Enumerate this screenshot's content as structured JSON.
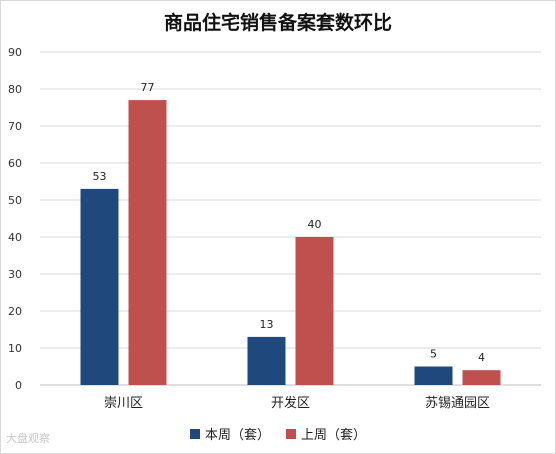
{
  "chart_data": {
    "type": "bar",
    "title": "商品住宅销售备案套数环比",
    "categories": [
      "崇川区",
      "开发区",
      "苏锡通园区"
    ],
    "series": [
      {
        "name": "本周（套）",
        "values": [
          53,
          13,
          5
        ],
        "color": "#1f497d"
      },
      {
        "name": "上周（套）",
        "values": [
          77,
          40,
          4
        ],
        "color": "#c0504d"
      }
    ],
    "ylim": [
      0,
      90
    ],
    "yticks": [
      0,
      10,
      20,
      30,
      40,
      50,
      60,
      70,
      80,
      90
    ],
    "grid": true,
    "legend_position": "bottom"
  },
  "watermark": "大盘观察"
}
